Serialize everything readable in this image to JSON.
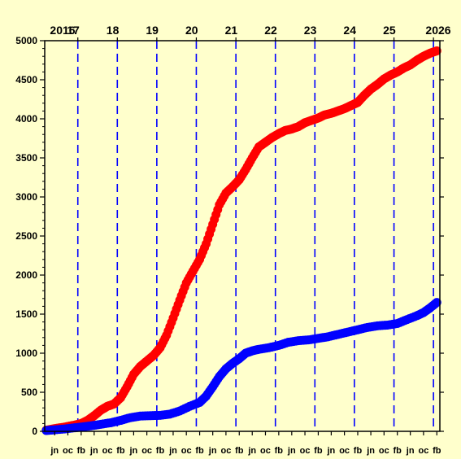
{
  "chart_data": {
    "type": "scatter",
    "title": "",
    "xlabel": "",
    "ylabel": "",
    "ylim": [
      0,
      5000
    ],
    "xlim": [
      "2016-03-01",
      "2026-03-01"
    ],
    "yticks": [
      0,
      500,
      1000,
      1500,
      2000,
      2500,
      3000,
      3500,
      4000,
      4500,
      5000
    ],
    "top_axis_labels": [
      {
        "label": "2016",
        "year": 2016
      },
      {
        "label": "17",
        "year": 2017
      },
      {
        "label": "18",
        "year": 2018
      },
      {
        "label": "19",
        "year": 2019
      },
      {
        "label": "20",
        "year": 2020
      },
      {
        "label": "21",
        "year": 2021
      },
      {
        "label": "22",
        "year": 2022
      },
      {
        "label": "23",
        "year": 2023
      },
      {
        "label": "24",
        "year": 2024
      },
      {
        "label": "25",
        "year": 2025
      },
      {
        "label": "2026",
        "year": 2026
      }
    ],
    "bottom_axis_labels": [
      {
        "label": "jn",
        "date": "2016-06-01"
      },
      {
        "label": "oc",
        "date": "2016-10-01"
      },
      {
        "label": "fb",
        "date": "2017-02-01"
      },
      {
        "label": "jn",
        "date": "2017-06-01"
      },
      {
        "label": "oc",
        "date": "2017-10-01"
      },
      {
        "label": "fb",
        "date": "2018-02-01"
      },
      {
        "label": "jn",
        "date": "2018-06-01"
      },
      {
        "label": "oc",
        "date": "2018-10-01"
      },
      {
        "label": "fb",
        "date": "2019-02-01"
      },
      {
        "label": "jn",
        "date": "2019-06-01"
      },
      {
        "label": "oc",
        "date": "2019-10-01"
      },
      {
        "label": "fb",
        "date": "2020-02-01"
      },
      {
        "label": "jn",
        "date": "2020-06-01"
      },
      {
        "label": "oc",
        "date": "2020-10-01"
      },
      {
        "label": "fb",
        "date": "2021-02-01"
      },
      {
        "label": "jn",
        "date": "2021-06-01"
      },
      {
        "label": "oc",
        "date": "2021-10-01"
      },
      {
        "label": "fb",
        "date": "2022-02-01"
      },
      {
        "label": "jn",
        "date": "2022-06-01"
      },
      {
        "label": "oc",
        "date": "2022-10-01"
      },
      {
        "label": "fb",
        "date": "2023-02-01"
      },
      {
        "label": "jn",
        "date": "2023-06-01"
      },
      {
        "label": "oc",
        "date": "2023-10-01"
      },
      {
        "label": "fb",
        "date": "2024-02-01"
      },
      {
        "label": "jn",
        "date": "2024-06-01"
      },
      {
        "label": "oc",
        "date": "2024-10-01"
      },
      {
        "label": "fb",
        "date": "2025-02-01"
      },
      {
        "label": "jn",
        "date": "2025-06-01"
      },
      {
        "label": "oc",
        "date": "2025-10-01"
      },
      {
        "label": "fb",
        "date": "2026-02-01"
      }
    ],
    "vertical_reference_lines": [
      "2017-01-01",
      "2018-01-01",
      "2019-01-01",
      "2020-01-01",
      "2021-01-01",
      "2022-01-01",
      "2023-01-01",
      "2024-01-01",
      "2025-01-01",
      "2026-01-01"
    ],
    "grid": false,
    "series": [
      {
        "color": "#FF0000",
        "points": [
          [
            "2016-03-15",
            15
          ],
          [
            "2016-06-01",
            35
          ],
          [
            "2016-09-01",
            55
          ],
          [
            "2016-12-01",
            80
          ],
          [
            "2017-02-01",
            100
          ],
          [
            "2017-04-01",
            140
          ],
          [
            "2017-06-01",
            200
          ],
          [
            "2017-08-01",
            270
          ],
          [
            "2017-10-01",
            320
          ],
          [
            "2017-12-01",
            350
          ],
          [
            "2018-02-01",
            430
          ],
          [
            "2018-04-01",
            570
          ],
          [
            "2018-06-01",
            730
          ],
          [
            "2018-08-01",
            830
          ],
          [
            "2018-10-01",
            900
          ],
          [
            "2018-12-01",
            970
          ],
          [
            "2019-02-01",
            1070
          ],
          [
            "2019-04-01",
            1230
          ],
          [
            "2019-06-01",
            1450
          ],
          [
            "2019-08-01",
            1680
          ],
          [
            "2019-10-01",
            1900
          ],
          [
            "2019-12-01",
            2050
          ],
          [
            "2020-02-01",
            2200
          ],
          [
            "2020-04-01",
            2400
          ],
          [
            "2020-06-01",
            2650
          ],
          [
            "2020-08-01",
            2900
          ],
          [
            "2020-10-01",
            3050
          ],
          [
            "2020-12-01",
            3130
          ],
          [
            "2021-02-01",
            3220
          ],
          [
            "2021-04-01",
            3350
          ],
          [
            "2021-06-01",
            3500
          ],
          [
            "2021-08-01",
            3640
          ],
          [
            "2021-10-01",
            3700
          ],
          [
            "2021-12-01",
            3760
          ],
          [
            "2022-02-01",
            3810
          ],
          [
            "2022-04-01",
            3850
          ],
          [
            "2022-06-01",
            3870
          ],
          [
            "2022-08-01",
            3900
          ],
          [
            "2022-10-01",
            3950
          ],
          [
            "2022-12-01",
            3980
          ],
          [
            "2023-02-01",
            4010
          ],
          [
            "2023-04-01",
            4050
          ],
          [
            "2023-06-01",
            4070
          ],
          [
            "2023-08-01",
            4100
          ],
          [
            "2023-10-01",
            4130
          ],
          [
            "2023-12-01",
            4170
          ],
          [
            "2024-02-01",
            4210
          ],
          [
            "2024-04-01",
            4300
          ],
          [
            "2024-06-01",
            4380
          ],
          [
            "2024-08-01",
            4440
          ],
          [
            "2024-10-01",
            4510
          ],
          [
            "2024-12-01",
            4560
          ],
          [
            "2025-02-01",
            4600
          ],
          [
            "2025-04-01",
            4650
          ],
          [
            "2025-06-01",
            4690
          ],
          [
            "2025-08-01",
            4750
          ],
          [
            "2025-10-01",
            4800
          ],
          [
            "2025-12-01",
            4840
          ],
          [
            "2026-02-01",
            4870
          ]
        ]
      },
      {
        "color": "#0000FF",
        "points": [
          [
            "2016-03-15",
            10
          ],
          [
            "2016-06-01",
            20
          ],
          [
            "2016-09-01",
            30
          ],
          [
            "2016-12-01",
            45
          ],
          [
            "2017-02-01",
            55
          ],
          [
            "2017-05-01",
            70
          ],
          [
            "2017-08-01",
            90
          ],
          [
            "2017-11-01",
            110
          ],
          [
            "2018-02-01",
            140
          ],
          [
            "2018-05-01",
            175
          ],
          [
            "2018-08-01",
            195
          ],
          [
            "2018-11-01",
            200
          ],
          [
            "2019-02-01",
            205
          ],
          [
            "2019-05-01",
            220
          ],
          [
            "2019-08-01",
            260
          ],
          [
            "2019-11-01",
            320
          ],
          [
            "2020-02-01",
            370
          ],
          [
            "2020-04-01",
            450
          ],
          [
            "2020-06-01",
            570
          ],
          [
            "2020-08-01",
            700
          ],
          [
            "2020-10-01",
            800
          ],
          [
            "2020-12-01",
            870
          ],
          [
            "2021-02-01",
            930
          ],
          [
            "2021-04-01",
            1000
          ],
          [
            "2021-06-01",
            1030
          ],
          [
            "2021-08-01",
            1050
          ],
          [
            "2021-11-01",
            1070
          ],
          [
            "2022-02-01",
            1100
          ],
          [
            "2022-05-01",
            1140
          ],
          [
            "2022-08-01",
            1160
          ],
          [
            "2022-11-01",
            1170
          ],
          [
            "2023-02-01",
            1190
          ],
          [
            "2023-05-01",
            1210
          ],
          [
            "2023-08-01",
            1240
          ],
          [
            "2023-11-01",
            1270
          ],
          [
            "2024-02-01",
            1300
          ],
          [
            "2024-05-01",
            1330
          ],
          [
            "2024-08-01",
            1350
          ],
          [
            "2024-11-01",
            1360
          ],
          [
            "2025-02-01",
            1380
          ],
          [
            "2025-05-01",
            1430
          ],
          [
            "2025-08-01",
            1480
          ],
          [
            "2025-10-01",
            1520
          ],
          [
            "2025-12-01",
            1580
          ],
          [
            "2026-02-01",
            1650
          ]
        ]
      }
    ]
  }
}
